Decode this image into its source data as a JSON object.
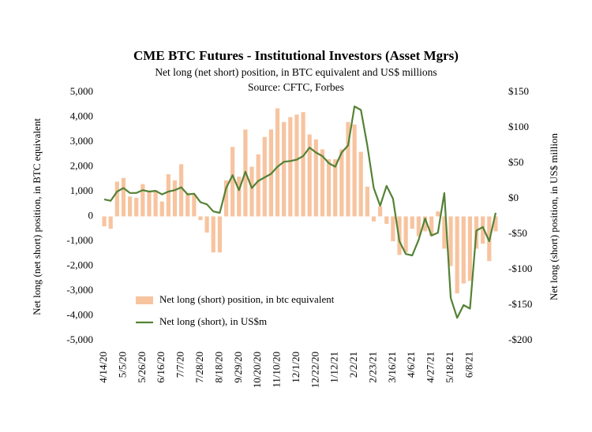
{
  "chart_data": {
    "type": "bar-line",
    "title": "CME BTC Futures - Institutional Investors (Asset Mgrs)",
    "subtitle": "Net long (net short) position, in BTC equivalent and US$ millions",
    "source": "Source: CFTC, Forbes",
    "y_label": "Net long (net short) position, in BTC equivalent",
    "y2_label": "Net long (short) position, in US$ million",
    "categories": [
      "4/14/20",
      null,
      null,
      "5/5/20",
      null,
      null,
      "5/26/20",
      null,
      null,
      "6/16/20",
      null,
      null,
      "7/7/20",
      null,
      null,
      "7/28/20",
      null,
      null,
      "8/18/20",
      null,
      null,
      "9/29/20",
      null,
      null,
      "10/20/20",
      null,
      null,
      "11/10/20",
      null,
      null,
      "12/1/20",
      null,
      null,
      "12/22/20",
      null,
      null,
      "1/12/21",
      null,
      null,
      "2/2/21",
      null,
      null,
      "2/23/21",
      null,
      null,
      "3/16/21",
      null,
      null,
      "4/6/21",
      null,
      null,
      "4/27/21",
      null,
      null,
      "5/18/21",
      null,
      null,
      "6/8/21",
      null,
      null,
      null,
      null
    ],
    "series": [
      {
        "name": "Net long (short) position, in btc equivalent",
        "type": "bar",
        "axis": "y",
        "color": "#f7c4a0",
        "values": [
          -400,
          -500,
          1400,
          1550,
          800,
          750,
          1300,
          1000,
          1050,
          600,
          1700,
          1450,
          2100,
          950,
          900,
          -150,
          -650,
          -1450,
          -1450,
          1450,
          2800,
          1600,
          3500,
          2000,
          2500,
          3200,
          3500,
          4350,
          3800,
          4000,
          4100,
          4200,
          3300,
          3100,
          2700,
          2300,
          2300,
          2700,
          3800,
          3700,
          2600,
          1200,
          -200,
          400,
          -300,
          -1000,
          -1550,
          -1450,
          -500,
          -800,
          -600,
          -800,
          200,
          -1300,
          -2000,
          -3100,
          -2700,
          -2600,
          -1300,
          -1100,
          -1800,
          -600
        ]
      },
      {
        "name": "Net long (short), in US$m",
        "type": "line",
        "axis": "y2",
        "color": "#548235",
        "values": [
          -1,
          -3,
          10,
          15,
          8,
          8,
          12,
          10,
          11,
          6,
          10,
          12,
          16,
          6,
          7,
          -5,
          -8,
          -18,
          -20,
          15,
          33,
          12,
          38,
          15,
          25,
          30,
          35,
          45,
          52,
          53,
          55,
          60,
          72,
          65,
          60,
          50,
          45,
          65,
          75,
          130,
          125,
          75,
          15,
          -10,
          18,
          0,
          -60,
          -78,
          -80,
          -58,
          -28,
          -52,
          -48,
          8,
          -140,
          -168,
          -150,
          -155,
          -45,
          -40,
          -60,
          -20
        ]
      }
    ],
    "ylim": [
      -5000,
      5000
    ],
    "yticks": [
      {
        "value": 5000,
        "label": "5,000"
      },
      {
        "value": 4000,
        "label": "4,000"
      },
      {
        "value": 3000,
        "label": "3,000"
      },
      {
        "value": 2000,
        "label": "2,000"
      },
      {
        "value": 1000,
        "label": "1,000"
      },
      0,
      {
        "value": -1000,
        "label": "-1,000"
      },
      {
        "value": -2000,
        "label": "-2,000"
      },
      {
        "value": -3000,
        "label": "-3,000"
      },
      {
        "value": -4000,
        "label": "-4,000"
      },
      {
        "value": -5000,
        "label": "-5,000"
      }
    ],
    "y2lim": [
      -200,
      150
    ],
    "y2ticks": [
      {
        "value": 150,
        "label": "$150"
      },
      {
        "value": 100,
        "label": "$100"
      },
      {
        "value": 50,
        "label": "$50"
      },
      {
        "value": 0,
        "label": "$0"
      },
      {
        "value": -50,
        "label": "-$50"
      },
      {
        "value": -100,
        "label": "-$100"
      },
      {
        "value": -150,
        "label": "-$150"
      },
      {
        "value": -200,
        "label": "-$200"
      }
    ]
  }
}
